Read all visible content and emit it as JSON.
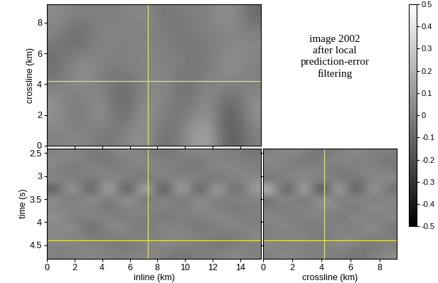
{
  "chart_data": [
    {
      "type": "heatmap",
      "ylabel": "crossline (km)",
      "xlim": [
        0,
        15.5
      ],
      "ylim": [
        0,
        9.2
      ],
      "xticks": [
        0,
        2,
        4,
        6,
        8,
        10,
        12,
        14
      ],
      "yticks": [
        0,
        2,
        4,
        6,
        8
      ],
      "tick_labels": "y",
      "crosshair": {
        "x": 7.3,
        "y": 4.2,
        "color": "#e6e645"
      },
      "cells": [
        [
          0.05,
          0,
          0,
          0,
          0.05,
          -0.05,
          0,
          0,
          0.1,
          -0.1
        ],
        [
          0,
          -0.15,
          0.05,
          0,
          0,
          0,
          -0.05,
          0,
          0,
          0.05
        ],
        [
          -0.1,
          0.1,
          0,
          0,
          0.05,
          0,
          0,
          -0.05,
          0.1,
          0
        ],
        [
          0,
          0.05,
          0,
          -0.1,
          0,
          0.05,
          -0.1,
          0.05,
          0,
          0
        ],
        [
          0.1,
          -0.1,
          0.15,
          -0.15,
          0.1,
          0,
          -0.05,
          0.1,
          -0.2,
          0.1
        ],
        [
          0,
          0.05,
          -0.05,
          0,
          0.1,
          -0.1,
          0.05,
          0.2,
          -0.2,
          0
        ]
      ]
    },
    {
      "type": "heatmap",
      "xlabel": "inline (km)",
      "ylabel": "time (s)",
      "xlim": [
        0,
        15.5
      ],
      "ylim": [
        4.8,
        2.4
      ],
      "xticks": [
        0,
        2,
        4,
        6,
        8,
        10,
        12,
        14
      ],
      "yticks": [
        2.5,
        3,
        3.5,
        4,
        4.5
      ],
      "tick_labels": true,
      "crosshair": {
        "x": 7.3,
        "y": 4.4,
        "color": "#e6e645"
      },
      "cells": [
        [
          0,
          0.05,
          -0.05,
          0,
          0.05,
          0,
          -0.05,
          0,
          0.05,
          0,
          0,
          -0.05
        ],
        [
          0.05,
          0,
          0,
          -0.05,
          0,
          0.05,
          0,
          0,
          -0.05,
          0.05,
          0,
          0
        ],
        [
          0,
          -0.05,
          0.05,
          0,
          0,
          0,
          0.05,
          -0.05,
          0,
          0,
          0.05,
          0
        ],
        [
          0.05,
          0,
          -0.05,
          0.05,
          0,
          -0.05,
          0,
          0.05,
          0,
          -0.05,
          0,
          0.05
        ],
        [
          -0.2,
          0.25,
          -0.3,
          0.35,
          -0.4,
          0.45,
          -0.4,
          0.35,
          -0.3,
          0.3,
          -0.2,
          0.15
        ],
        [
          0.1,
          -0.1,
          0.15,
          -0.1,
          0.2,
          -0.15,
          0.1,
          -0.1,
          0.1,
          -0.05,
          0.05,
          0
        ],
        [
          0,
          0.05,
          0,
          -0.05,
          0,
          0.05,
          0,
          0,
          0.05,
          0,
          -0.05,
          0
        ],
        [
          0.1,
          -0.05,
          0.05,
          0,
          0,
          0,
          -0.05,
          0,
          0,
          0.05,
          0,
          0
        ],
        [
          0,
          0.1,
          -0.15,
          0.1,
          0,
          -0.05,
          0.05,
          0,
          -0.05,
          0,
          0.05,
          0
        ],
        [
          0.05,
          0,
          0,
          -0.05,
          0.05,
          0,
          0,
          0.05,
          0,
          0,
          -0.05,
          0.05
        ],
        [
          0,
          0.05,
          0,
          0,
          -0.05,
          0,
          0.05,
          0,
          0,
          -0.05,
          0,
          0
        ],
        [
          0,
          0,
          0.05,
          0,
          0,
          0.05,
          0,
          -0.05,
          0,
          0,
          0.05,
          0
        ]
      ]
    },
    {
      "type": "heatmap",
      "xlabel": "crossline (km)",
      "xlim": [
        0,
        9.2
      ],
      "ylim": [
        4.8,
        2.4
      ],
      "xticks": [
        0,
        2,
        4,
        6,
        8
      ],
      "yticks": [
        2.5,
        3,
        3.5,
        4,
        4.5
      ],
      "tick_labels": "x",
      "crosshair": {
        "x": 4.2,
        "y": 4.4,
        "color": "#e6e645"
      },
      "cells": [
        [
          0,
          0.05,
          0,
          -0.05,
          0,
          0.05,
          0,
          0
        ],
        [
          0.05,
          0,
          -0.05,
          0,
          0.05,
          0,
          0,
          -0.05
        ],
        [
          0,
          0,
          0.05,
          0,
          -0.05,
          0,
          0.05,
          0
        ],
        [
          -0.05,
          0.05,
          0,
          0.05,
          0,
          -0.05,
          0,
          0.05
        ],
        [
          0.3,
          -0.35,
          0.4,
          -0.45,
          0.35,
          -0.3,
          0.2,
          -0.1
        ],
        [
          -0.1,
          0.15,
          -0.15,
          0.2,
          -0.1,
          0.1,
          -0.05,
          0.05
        ],
        [
          0,
          -0.05,
          0.05,
          0,
          0.1,
          -0.1,
          0.1,
          0
        ],
        [
          0.05,
          0,
          0,
          0.05,
          -0.1,
          0.1,
          -0.05,
          0.05
        ],
        [
          0,
          0.05,
          -0.05,
          0,
          0.05,
          -0.05,
          0.1,
          -0.05
        ],
        [
          0,
          0,
          0.05,
          -0.05,
          0,
          0.05,
          0,
          0
        ],
        [
          0.05,
          0,
          0,
          0,
          0.05,
          0,
          -0.05,
          0
        ],
        [
          0,
          0.05,
          0,
          0,
          0,
          -0.05,
          0,
          0.05
        ]
      ]
    }
  ],
  "colorbar": {
    "range": [
      -0.5,
      0.5
    ],
    "ticks": [
      -0.5,
      -0.4,
      -0.3,
      -0.2,
      -0.1,
      0,
      0.1,
      0.2,
      0.3,
      0.4,
      0.5
    ]
  },
  "annotation": "image 2002\nafter local\nprediction-error\nfiltering"
}
